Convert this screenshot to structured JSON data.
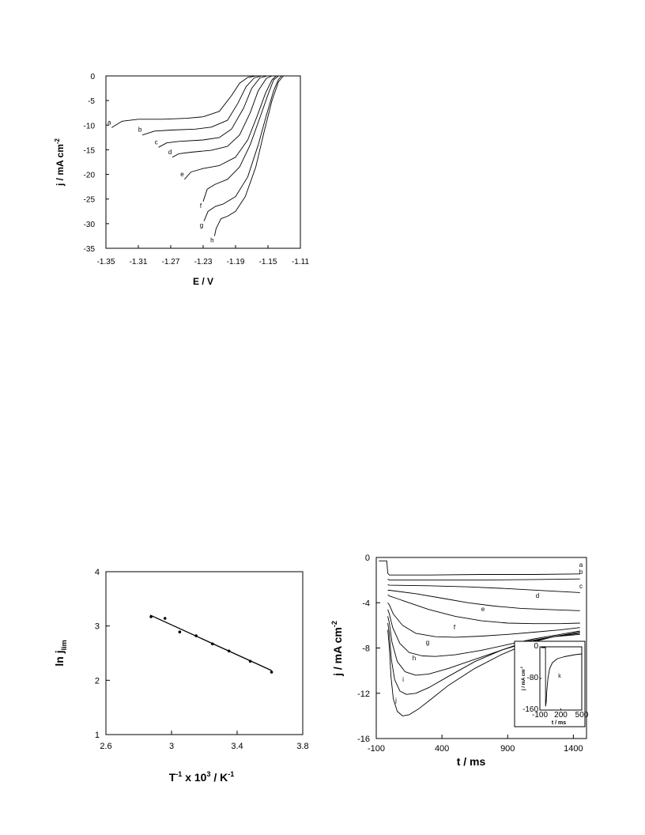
{
  "chart_data": [
    {
      "id": "lsv",
      "type": "line",
      "xlabel": "E  /  V",
      "ylabel": "j  /  mA cm",
      "ylabel_sup": "-2",
      "xlim": [
        -1.35,
        -1.11
      ],
      "ylim": [
        -35,
        0
      ],
      "xticks": [
        -1.35,
        -1.31,
        -1.27,
        -1.23,
        -1.19,
        -1.15,
        -1.11
      ],
      "yticks": [
        0,
        -5,
        -10,
        -15,
        -20,
        -25,
        -30,
        -35
      ],
      "xtick_labels": [
        "-1.35",
        "-1.31",
        "-1.27",
        "-1.23",
        "-1.19",
        "-1.15",
        "-1.11"
      ],
      "ytick_labels": [
        "0",
        "-5",
        "-10",
        "-15",
        "-20",
        "-25",
        "-30",
        "-35"
      ],
      "series": [
        {
          "label": "a",
          "x": [
            -1.343,
            -1.33,
            -1.31,
            -1.28,
            -1.25,
            -1.23,
            -1.21,
            -1.195,
            -1.185,
            -1.175,
            -1.165
          ],
          "y": [
            -10.5,
            -9.2,
            -8.8,
            -8.8,
            -8.6,
            -8.3,
            -7.2,
            -4.0,
            -1.5,
            -0.3,
            0
          ]
        },
        {
          "label": "b",
          "x": [
            -1.305,
            -1.29,
            -1.27,
            -1.24,
            -1.22,
            -1.2,
            -1.187,
            -1.177,
            -1.167,
            -1.158
          ],
          "y": [
            -12.0,
            -11.2,
            -11.0,
            -10.8,
            -10.4,
            -9.0,
            -5.5,
            -2.2,
            -0.4,
            0
          ]
        },
        {
          "label": "c",
          "x": [
            -1.285,
            -1.275,
            -1.26,
            -1.23,
            -1.21,
            -1.195,
            -1.18,
            -1.17,
            -1.16,
            -1.151
          ],
          "y": [
            -14.5,
            -13.6,
            -13.3,
            -13.0,
            -12.5,
            -10.8,
            -6.5,
            -2.5,
            -0.4,
            0
          ]
        },
        {
          "label": "d",
          "x": [
            -1.268,
            -1.26,
            -1.245,
            -1.22,
            -1.2,
            -1.185,
            -1.172,
            -1.162,
            -1.152,
            -1.145
          ],
          "y": [
            -16.5,
            -15.8,
            -15.5,
            -15.1,
            -14.3,
            -12.0,
            -7.5,
            -3.0,
            -0.5,
            0
          ]
        },
        {
          "label": "e",
          "x": [
            -1.253,
            -1.245,
            -1.23,
            -1.21,
            -1.19,
            -1.175,
            -1.163,
            -1.153,
            -1.145,
            -1.14
          ],
          "y": [
            -21.0,
            -19.5,
            -18.8,
            -18.2,
            -16.5,
            -13.0,
            -8.0,
            -3.5,
            -0.8,
            0
          ]
        },
        {
          "label": "f",
          "x": [
            -1.23,
            -1.225,
            -1.215,
            -1.2,
            -1.185,
            -1.172,
            -1.16,
            -1.15,
            -1.143,
            -1.137
          ],
          "y": [
            -25.5,
            -23.0,
            -22.0,
            -21.0,
            -18.5,
            -14.0,
            -8.5,
            -3.8,
            -0.8,
            0
          ]
        },
        {
          "label": "g",
          "x": [
            -1.229,
            -1.224,
            -1.215,
            -1.205,
            -1.19,
            -1.175,
            -1.162,
            -1.152,
            -1.143,
            -1.137,
            -1.133
          ],
          "y": [
            -29.5,
            -27.5,
            -26.5,
            -26.0,
            -24.5,
            -20.5,
            -14.0,
            -8.0,
            -3.0,
            -0.7,
            0
          ]
        },
        {
          "label": "h",
          "x": [
            -1.216,
            -1.214,
            -1.208,
            -1.2,
            -1.19,
            -1.178,
            -1.165,
            -1.155,
            -1.145,
            -1.137,
            -1.131
          ],
          "y": [
            -32.5,
            -31.0,
            -29.0,
            -28.5,
            -27.5,
            -24.5,
            -18.5,
            -11.5,
            -5.0,
            -1.2,
            0
          ]
        }
      ]
    },
    {
      "id": "arrhenius",
      "type": "scatter",
      "xlabel": "T",
      "xlabel_sup1": "-1",
      "xlabel_mid": " x 10",
      "xlabel_sup2": "3",
      "xlabel_end": " /  K",
      "xlabel_sup3": "-1",
      "ylabel": "ln j",
      "ylabel_sub": "lim",
      "xlim": [
        2.6,
        3.8
      ],
      "ylim": [
        1,
        4
      ],
      "xticks": [
        2.6,
        3.0,
        3.4,
        3.8
      ],
      "yticks": [
        1,
        2,
        3,
        4
      ],
      "xtick_labels": [
        "2.6",
        "3",
        "3.4",
        "3.8"
      ],
      "ytick_labels": [
        "1",
        "2",
        "3",
        "4"
      ],
      "points": {
        "x": [
          2.875,
          2.96,
          3.05,
          3.15,
          3.25,
          3.35,
          3.48,
          3.61
        ],
        "y": [
          3.17,
          3.14,
          2.89,
          2.82,
          2.67,
          2.54,
          2.35,
          2.15
        ]
      },
      "fit": {
        "x": [
          2.87,
          3.61
        ],
        "y": [
          3.2,
          2.18
        ]
      }
    },
    {
      "id": "transients",
      "type": "line",
      "xlabel": "t  /  ms",
      "ylabel": "j  /  mA cm",
      "ylabel_sup": "-2",
      "xlim": [
        -100,
        1500
      ],
      "ylim": [
        -16,
        0
      ],
      "xticks": [
        -100,
        400,
        900,
        1400
      ],
      "yticks": [
        0,
        -4,
        -8,
        -12,
        -16
      ],
      "xtick_labels": [
        "-100",
        "400",
        "900",
        "1400"
      ],
      "ytick_labels": [
        "0",
        "-4",
        "-8",
        "-12",
        "-16"
      ],
      "series": [
        {
          "label": "a",
          "x": [
            -80,
            -20,
            -12,
            0,
            300,
            700,
            1100,
            1450
          ],
          "y": [
            -0.3,
            -0.3,
            -1.4,
            -1.55,
            -1.55,
            -1.5,
            -1.5,
            -1.45
          ]
        },
        {
          "label": "b",
          "x": [
            -12,
            0,
            300,
            700,
            1100,
            1450
          ],
          "y": [
            -1.9,
            -2.0,
            -2.0,
            -2.0,
            -1.95,
            -1.9
          ]
        },
        {
          "label": "c",
          "x": [
            -12,
            0,
            300,
            600,
            900,
            1200,
            1450
          ],
          "y": [
            -2.4,
            -2.45,
            -2.5,
            -2.6,
            -2.75,
            -2.95,
            -3.1
          ]
        },
        {
          "label": "d",
          "x": [
            -12,
            0,
            200,
            400,
            600,
            800,
            1000,
            1200,
            1450
          ],
          "y": [
            -2.9,
            -2.9,
            -3.2,
            -3.6,
            -4.0,
            -4.3,
            -4.5,
            -4.6,
            -4.7
          ]
        },
        {
          "label": "e",
          "x": [
            -12,
            0,
            50,
            150,
            300,
            500,
            700,
            900,
            1100,
            1300,
            1450
          ],
          "y": [
            -3.3,
            -3.4,
            -3.6,
            -4.0,
            -4.6,
            -5.2,
            -5.6,
            -5.8,
            -5.85,
            -5.85,
            -5.8
          ]
        },
        {
          "label": "f",
          "x": [
            -12,
            0,
            30,
            100,
            200,
            350,
            500,
            700,
            900,
            1100,
            1300,
            1450
          ],
          "y": [
            -4.0,
            -4.2,
            -5.0,
            -6.0,
            -6.7,
            -7.0,
            -7.05,
            -6.95,
            -6.8,
            -6.6,
            -6.4,
            -6.2
          ]
        },
        {
          "label": "g",
          "x": [
            -12,
            0,
            25,
            80,
            150,
            250,
            350,
            500,
            700,
            900,
            1100,
            1300,
            1450
          ],
          "y": [
            -4.6,
            -5.0,
            -6.2,
            -7.6,
            -8.4,
            -8.7,
            -8.75,
            -8.6,
            -8.2,
            -7.7,
            -7.2,
            -6.8,
            -6.5
          ]
        },
        {
          "label": "h",
          "x": [
            -12,
            0,
            20,
            60,
            120,
            200,
            300,
            450,
            650,
            850,
            1050,
            1250,
            1450
          ],
          "y": [
            -5.2,
            -5.8,
            -7.5,
            -9.2,
            -10.1,
            -10.4,
            -10.3,
            -9.8,
            -9.0,
            -8.2,
            -7.5,
            -7.0,
            -6.6
          ]
        },
        {
          "label": "i",
          "x": [
            -12,
            0,
            15,
            40,
            80,
            130,
            200,
            300,
            450,
            650,
            850,
            1050,
            1250,
            1450
          ],
          "y": [
            -5.8,
            -6.8,
            -9.0,
            -10.8,
            -11.8,
            -12.1,
            -12.0,
            -11.5,
            -10.5,
            -9.2,
            -8.2,
            -7.4,
            -7.0,
            -6.7
          ]
        },
        {
          "label": "j",
          "x": [
            -12,
            0,
            12,
            30,
            60,
            100,
            150,
            220,
            320,
            450,
            650,
            850,
            1050,
            1250,
            1450
          ],
          "y": [
            -6.4,
            -8.0,
            -10.5,
            -12.5,
            -13.6,
            -14.0,
            -13.9,
            -13.4,
            -12.5,
            -11.3,
            -9.8,
            -8.6,
            -7.6,
            -7.0,
            -6.8
          ]
        }
      ]
    },
    {
      "id": "inset",
      "type": "line",
      "xlabel": "t  /  ms",
      "ylabel": "j  /  mA cm",
      "ylabel_sup": "-2",
      "xlim": [
        -100,
        500
      ],
      "ylim": [
        -160,
        0
      ],
      "xticks": [
        -100,
        200,
        500
      ],
      "yticks": [
        0,
        -80,
        -160
      ],
      "xtick_labels": [
        "-100",
        "200",
        "500"
      ],
      "ytick_labels": [
        "0",
        "-80",
        "-160"
      ],
      "series": [
        {
          "label": "k",
          "x": [
            -80,
            -20,
            -18,
            -10,
            0,
            15,
            40,
            80,
            150,
            250,
            400,
            500
          ],
          "y": [
            -2,
            -2,
            -150,
            -140,
            -110,
            -80,
            -55,
            -40,
            -30,
            -25,
            -20,
            -18
          ]
        }
      ]
    }
  ]
}
